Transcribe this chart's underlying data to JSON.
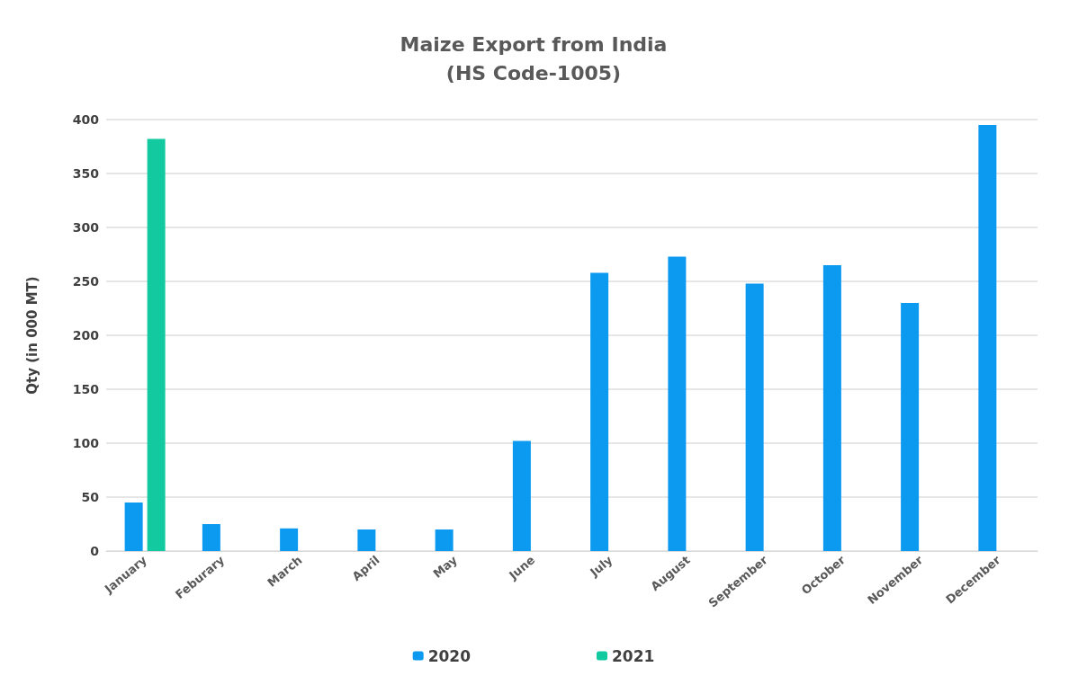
{
  "chart_data": {
    "type": "bar",
    "title": "Maize Export from India\n(HS Code-1005)",
    "ylabel": "Qty (in 000 MT)",
    "categories": [
      "January",
      "Feburary",
      "March",
      "April",
      "May",
      "June",
      "July",
      "August",
      "September",
      "October",
      "November",
      "December"
    ],
    "series": [
      {
        "name": "2020",
        "color": "#0b9af0",
        "values": [
          45,
          25,
          21,
          20,
          20,
          102,
          258,
          273,
          248,
          265,
          230,
          395
        ]
      },
      {
        "name": "2021",
        "color": "#13c9a0",
        "values": [
          382,
          null,
          null,
          null,
          null,
          null,
          null,
          null,
          null,
          null,
          null,
          null
        ]
      }
    ],
    "ylim": [
      0,
      400
    ],
    "yticks": [
      0,
      50,
      100,
      150,
      200,
      250,
      300,
      350,
      400
    ],
    "grid": "y",
    "legend": "bottom"
  }
}
